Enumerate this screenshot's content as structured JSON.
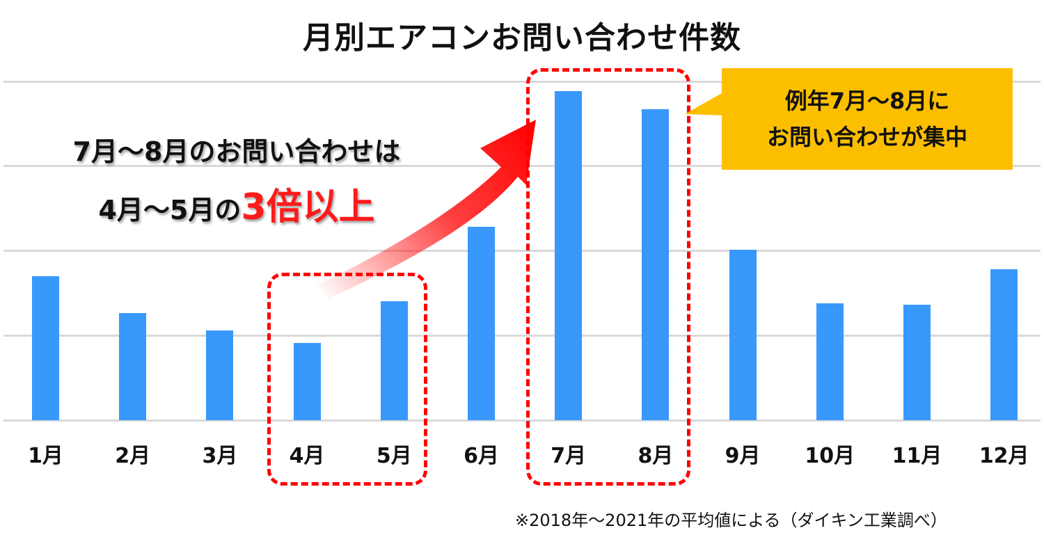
{
  "title": "月別エアコンお問い合わせ件数",
  "chart_data": {
    "type": "bar",
    "title": "月別エアコンお問い合わせ件数",
    "xlabel": "",
    "ylabel": "",
    "categories": [
      "1月",
      "2月",
      "3月",
      "4月",
      "5月",
      "6月",
      "7月",
      "8月",
      "9月",
      "10月",
      "11月",
      "12月"
    ],
    "values": [
      1.7,
      1.26,
      1.06,
      0.91,
      1.4,
      2.28,
      3.88,
      3.66,
      2.01,
      1.38,
      1.36,
      1.78
    ],
    "value_unit": "relative (gridline units; no y-axis tick labels shown)",
    "ylim": [
      0,
      4
    ],
    "grid": true,
    "gridlines": [
      0,
      1,
      2,
      3,
      4
    ],
    "bar_color": "#3898fb",
    "legend": null,
    "highlighted_groups": [
      [
        "4月",
        "5月"
      ],
      [
        "7月",
        "8月"
      ]
    ],
    "annotations": [
      "7月〜8月のお問い合わせは 4月〜5月の3倍以上",
      "例年7月〜8月に お問い合わせが集中"
    ]
  },
  "annotation_left": {
    "line1": "7月〜8月のお問い合わせは",
    "line2_prefix": "4月〜5月の",
    "line2_emphasis": "3倍以上",
    "emphasis_color": "#ff1a1a"
  },
  "callout": {
    "line1": "例年7月〜8月に",
    "line2": "お問い合わせが集中",
    "background": "#fcbf00"
  },
  "footnote": "※2018年〜2021年の平均値による（ダイキン工業調べ）",
  "colors": {
    "bar": "#3898fb",
    "highlight_box": "#ff0000",
    "gridline": "#d9d9d9"
  }
}
